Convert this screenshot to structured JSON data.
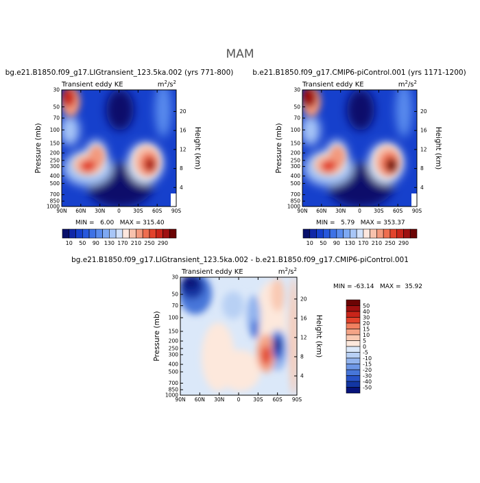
{
  "figure_title": "MAM",
  "chart_data": [
    {
      "type": "heatmap",
      "title": "bg.e21.B1850.f09_g17.LIGtransient_123.5ka.002 (yrs 771-800)",
      "subtitle_left": "Transient eddy KE",
      "units": "m²/s²",
      "units_base": "m",
      "units_sup1": "2",
      "units_mid": "/s",
      "units_sup2": "2",
      "xlabel": "",
      "ylabel": "Pressure (mb)",
      "ylabel_right": "Height (km)",
      "x_ticks": [
        "90N",
        "60N",
        "30N",
        "0",
        "30S",
        "60S",
        "90S"
      ],
      "y_ticks": [
        "30",
        "50",
        "70",
        "100",
        "150",
        "200",
        "250",
        "300",
        "400",
        "500",
        "700",
        "850",
        "1000"
      ],
      "height_ticks": [
        "4",
        "8",
        "12",
        "16",
        "20"
      ],
      "stats_text": "MIN =   6.00   MAX = 315.40",
      "min": 6.0,
      "max": 315.4,
      "colorbar_labels": [
        "10",
        "50",
        "90",
        "130",
        "170",
        "210",
        "250",
        "290"
      ],
      "maxima": [
        {
          "lat": 72,
          "pressure": 35,
          "value": 260
        },
        {
          "lat": 40,
          "pressure": 250,
          "value": 230
        },
        {
          "lat": -47,
          "pressure": 250,
          "value": 315
        }
      ]
    },
    {
      "type": "heatmap",
      "title": "b.e21.B1850.f09_g17.CMIP6-piControl.001 (yrs 1171-1200)",
      "subtitle_left": "Transient eddy KE",
      "units": "m²/s²",
      "units_base": "m",
      "units_sup1": "2",
      "units_mid": "/s",
      "units_sup2": "2",
      "xlabel": "",
      "ylabel": "Pressure (mb)",
      "ylabel_right": "Height (km)",
      "x_ticks": [
        "90N",
        "60N",
        "30N",
        "0",
        "30S",
        "60S",
        "90S"
      ],
      "y_ticks": [
        "30",
        "50",
        "70",
        "100",
        "150",
        "200",
        "250",
        "300",
        "400",
        "500",
        "700",
        "850",
        "1000"
      ],
      "height_ticks": [
        "4",
        "8",
        "12",
        "16",
        "20"
      ],
      "stats_text": "MIN =   5.79   MAX = 353.37",
      "min": 5.79,
      "max": 353.37,
      "colorbar_labels": [
        "10",
        "50",
        "90",
        "130",
        "170",
        "210",
        "250",
        "290"
      ],
      "maxima": [
        {
          "lat": 72,
          "pressure": 35,
          "value": 300
        },
        {
          "lat": 40,
          "pressure": 250,
          "value": 240
        },
        {
          "lat": -47,
          "pressure": 270,
          "value": 353
        }
      ]
    },
    {
      "type": "heatmap",
      "title": "bg.e21.B1850.f09_g17.LIGtransient_123.5ka.002 - b.e21.B1850.f09_g17.CMIP6-piControl.001",
      "subtitle_left": "Transient eddy KE",
      "units": "m²/s²",
      "units_base": "m",
      "units_sup1": "2",
      "units_mid": "/s",
      "units_sup2": "2",
      "xlabel": "",
      "ylabel": "Pressure (mb)",
      "ylabel_right": "Height (km)",
      "x_ticks": [
        "90N",
        "60N",
        "30N",
        "0",
        "30S",
        "60S",
        "90S"
      ],
      "y_ticks": [
        "30",
        "50",
        "70",
        "100",
        "150",
        "200",
        "250",
        "300",
        "400",
        "500",
        "700",
        "850",
        "1000"
      ],
      "height_ticks": [
        "4",
        "8",
        "12",
        "16",
        "20"
      ],
      "stats_text": "MIN = -63.14   MAX =  35.92",
      "min": -63.14,
      "max": 35.92,
      "colorbar_labels": [
        "50",
        "40",
        "30",
        "20",
        "15",
        "10",
        "5",
        "0",
        "-5",
        "-10",
        "-15",
        "-20",
        "-30",
        "-40",
        "-50"
      ],
      "features": [
        {
          "lat": 72,
          "pressure": 35,
          "value": -55
        },
        {
          "lat": -55,
          "pressure": 250,
          "value": -40
        },
        {
          "lat": -35,
          "pressure": 300,
          "value": 30
        },
        {
          "lat": -20,
          "pressure": 150,
          "value": -15
        }
      ]
    }
  ],
  "colors": {
    "abs_palette": [
      "#08106b",
      "#1027a8",
      "#1640cc",
      "#2758dc",
      "#3e72e6",
      "#5a8cee",
      "#7ea9f3",
      "#a8c6f7",
      "#d2e2fb",
      "#fde7de",
      "#f8c2ad",
      "#f39a7e",
      "#ee6e4f",
      "#e2432c",
      "#c9251a",
      "#9e1010",
      "#6b0404"
    ],
    "diff_palette": [
      "#6b0404",
      "#9e1010",
      "#c9251a",
      "#e2432c",
      "#f08060",
      "#f4a487",
      "#f9c9b2",
      "#fde8dc",
      "#dbe8f9",
      "#b8d0f4",
      "#93b4ee",
      "#6e97e6",
      "#4776d9",
      "#2853c7",
      "#1236a3",
      "#07137a"
    ]
  }
}
